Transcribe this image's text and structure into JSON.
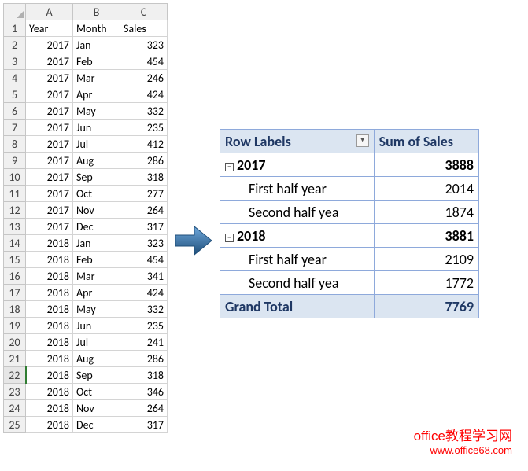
{
  "spreadsheet": {
    "columns": [
      "A",
      "B",
      "C"
    ],
    "headers": {
      "A": "Year",
      "B": "Month",
      "C": "Sales"
    },
    "selected_row_hdr": 22,
    "rows": [
      {
        "n": 1,
        "A": "Year",
        "B": "Month",
        "C": "Sales",
        "A_type": "txt",
        "C_type": "txt"
      },
      {
        "n": 2,
        "A": "2017",
        "B": "Jan",
        "C": "323"
      },
      {
        "n": 3,
        "A": "2017",
        "B": "Feb",
        "C": "454"
      },
      {
        "n": 4,
        "A": "2017",
        "B": "Mar",
        "C": "246"
      },
      {
        "n": 5,
        "A": "2017",
        "B": "Apr",
        "C": "424"
      },
      {
        "n": 6,
        "A": "2017",
        "B": "May",
        "C": "332"
      },
      {
        "n": 7,
        "A": "2017",
        "B": "Jun",
        "C": "235"
      },
      {
        "n": 8,
        "A": "2017",
        "B": "Jul",
        "C": "412"
      },
      {
        "n": 9,
        "A": "2017",
        "B": "Aug",
        "C": "286"
      },
      {
        "n": 10,
        "A": "2017",
        "B": "Sep",
        "C": "318"
      },
      {
        "n": 11,
        "A": "2017",
        "B": "Oct",
        "C": "277"
      },
      {
        "n": 12,
        "A": "2017",
        "B": "Nov",
        "C": "264"
      },
      {
        "n": 13,
        "A": "2017",
        "B": "Dec",
        "C": "317"
      },
      {
        "n": 14,
        "A": "2018",
        "B": "Jan",
        "C": "323"
      },
      {
        "n": 15,
        "A": "2018",
        "B": "Feb",
        "C": "454"
      },
      {
        "n": 16,
        "A": "2018",
        "B": "Mar",
        "C": "341"
      },
      {
        "n": 17,
        "A": "2018",
        "B": "Apr",
        "C": "424"
      },
      {
        "n": 18,
        "A": "2018",
        "B": "May",
        "C": "332"
      },
      {
        "n": 19,
        "A": "2018",
        "B": "Jun",
        "C": "235"
      },
      {
        "n": 20,
        "A": "2018",
        "B": "Jul",
        "C": "241"
      },
      {
        "n": 21,
        "A": "2018",
        "B": "Aug",
        "C": "286"
      },
      {
        "n": 22,
        "A": "2018",
        "B": "Sep",
        "C": "318"
      },
      {
        "n": 23,
        "A": "2018",
        "B": "Oct",
        "C": "346"
      },
      {
        "n": 24,
        "A": "2018",
        "B": "Nov",
        "C": "264"
      },
      {
        "n": 25,
        "A": "2018",
        "B": "Dec",
        "C": "317"
      }
    ]
  },
  "pivot": {
    "header_left": "Row Labels",
    "header_right": "Sum of Sales",
    "rows": [
      {
        "kind": "year",
        "label": "2017",
        "value": "3888"
      },
      {
        "kind": "detail",
        "label": "First half year",
        "value": "2014"
      },
      {
        "kind": "detail",
        "label": "Second half yea",
        "value": "1874"
      },
      {
        "kind": "year",
        "label": "2018",
        "value": "3881"
      },
      {
        "kind": "detail",
        "label": "First half year",
        "value": "2109"
      },
      {
        "kind": "detail",
        "label": "Second half yea",
        "value": "1772"
      }
    ],
    "total_label": "Grand Total",
    "total_value": "7769",
    "collapse_glyph": "−"
  },
  "arrow": {
    "fill": "#2e75b6",
    "stroke": "#1f4e79"
  },
  "watermark": {
    "line1": "office教程学习网",
    "line2": "www.office68.com"
  }
}
